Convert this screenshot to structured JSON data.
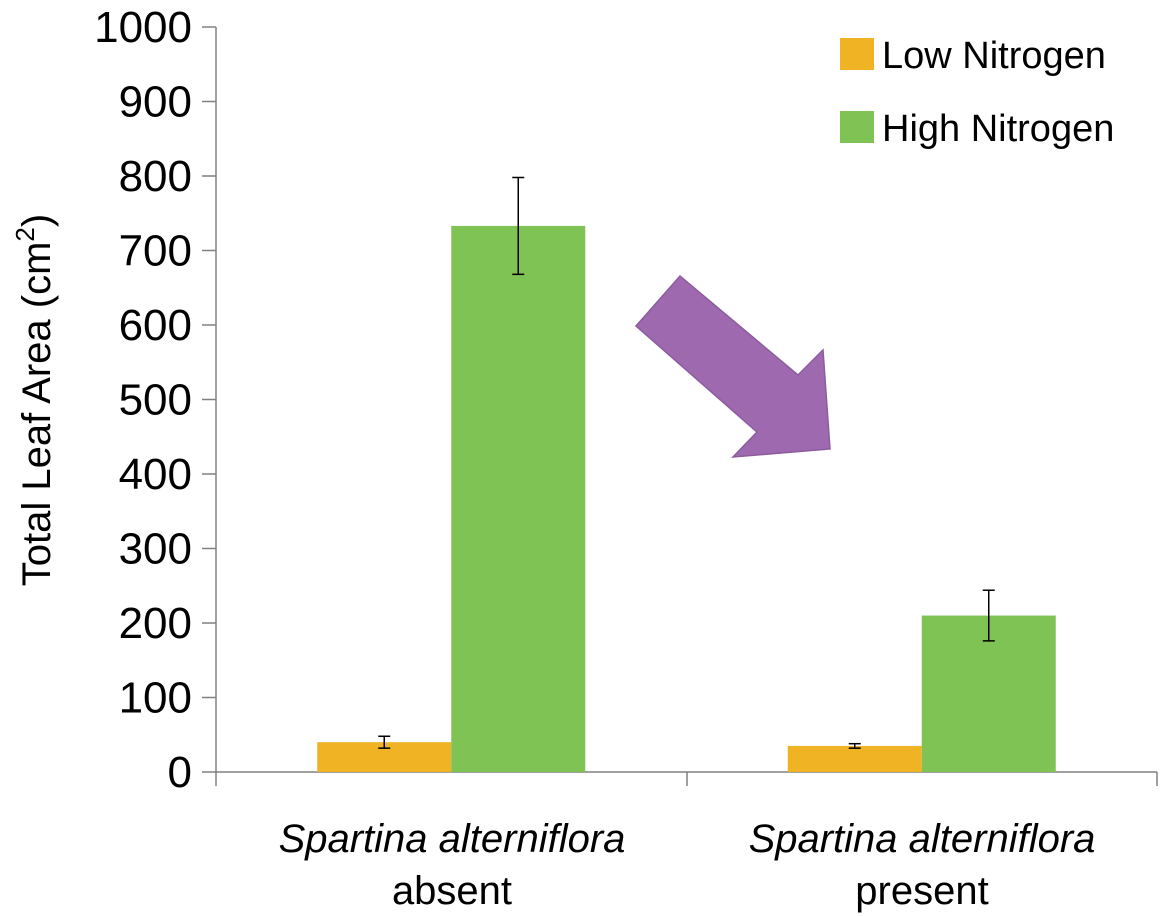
{
  "chart_data": {
    "type": "bar",
    "ylabel": "Total Leaf Area (cm",
    "ylabel_sup": "2",
    "ylabel_close": ")",
    "ylim": [
      0,
      1000
    ],
    "yticks": [
      "0",
      "100",
      "200",
      "300",
      "400",
      "500",
      "600",
      "700",
      "800",
      "900",
      "1000"
    ],
    "categories": [
      {
        "line1": "Spartina alterniflora",
        "line2": "absent"
      },
      {
        "line1": "Spartina alterniflora",
        "line2": "present"
      }
    ],
    "series": [
      {
        "name": "Low Nitrogen",
        "color": "#F0B323",
        "values": [
          40,
          35
        ],
        "errors": [
          8,
          3
        ]
      },
      {
        "name": "High Nitrogen",
        "color": "#7FC354",
        "values": [
          733,
          210
        ],
        "errors": [
          65,
          34
        ]
      }
    ],
    "annotation": {
      "type": "arrow",
      "color": "#9E69AF",
      "direction": "down-right"
    },
    "grid": false,
    "legend_position": "top-right"
  }
}
